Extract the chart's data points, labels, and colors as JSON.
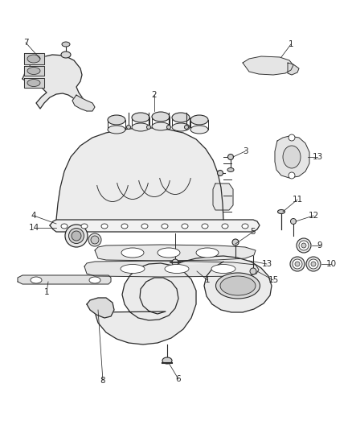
{
  "bg_color": "#ffffff",
  "line_color": "#2a2a2a",
  "label_color": "#2a2a2a",
  "figsize": [
    4.38,
    5.33
  ],
  "dpi": 100,
  "lw_main": 0.9,
  "lw_thin": 0.65,
  "label_fs": 7.5
}
